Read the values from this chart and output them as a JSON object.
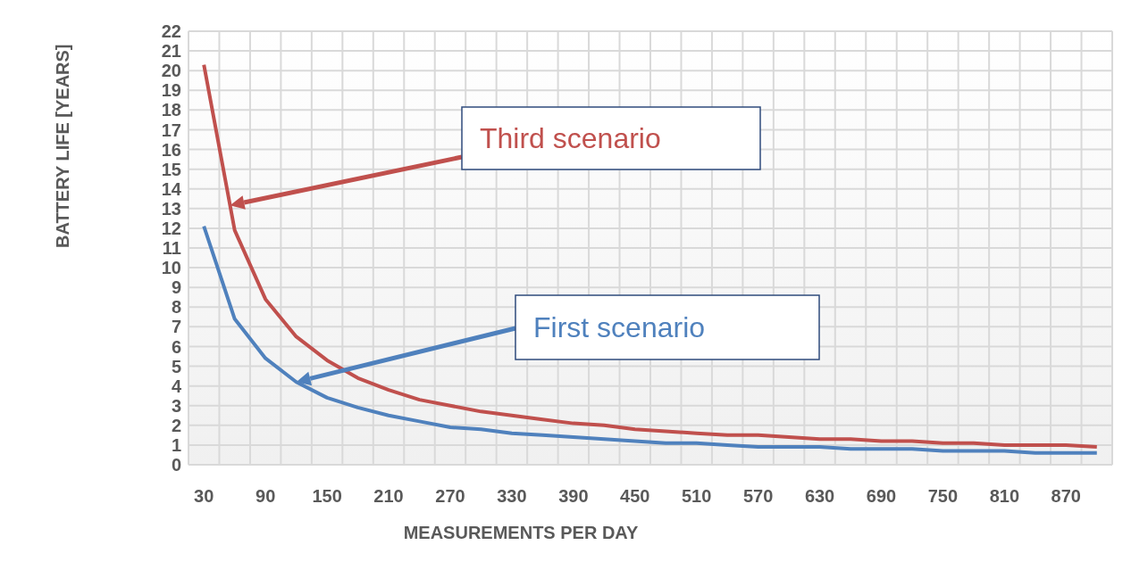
{
  "chart_data": {
    "type": "line",
    "xlabel": "MEASUREMENTS  PER DAY",
    "ylabel": "BATTERY LIFE [YEARS]",
    "categories": [
      "30",
      null,
      "90",
      null,
      "150",
      null,
      "210",
      null,
      "270",
      null,
      "330",
      null,
      "390",
      null,
      "450",
      null,
      "510",
      null,
      "570",
      null,
      "630",
      null,
      "690",
      null,
      "750",
      null,
      "810",
      null,
      "870",
      null
    ],
    "series": [
      {
        "name": "Third scenario",
        "color": "#c0504d",
        "values": [
          20.3,
          11.9,
          8.4,
          6.5,
          5.3,
          4.4,
          3.8,
          3.3,
          3.0,
          2.7,
          2.5,
          2.3,
          2.1,
          2.0,
          1.8,
          1.7,
          1.6,
          1.5,
          1.5,
          1.4,
          1.3,
          1.3,
          1.2,
          1.2,
          1.1,
          1.1,
          1.0,
          1.0,
          1.0,
          0.9
        ]
      },
      {
        "name": "First scenario",
        "color": "#4f81bd",
        "values": [
          12.1,
          7.4,
          5.4,
          4.2,
          3.4,
          2.9,
          2.5,
          2.2,
          1.9,
          1.8,
          1.6,
          1.5,
          1.4,
          1.3,
          1.2,
          1.1,
          1.1,
          1.0,
          0.9,
          0.9,
          0.9,
          0.8,
          0.8,
          0.8,
          0.7,
          0.7,
          0.7,
          0.6,
          0.6,
          0.6
        ]
      }
    ],
    "ylim": [
      0,
      22
    ],
    "yticks": [
      0,
      1,
      2,
      3,
      4,
      5,
      6,
      7,
      8,
      9,
      10,
      11,
      12,
      13,
      14,
      15,
      16,
      17,
      18,
      19,
      20,
      21,
      22
    ],
    "grid": true,
    "marker": "none"
  }
}
